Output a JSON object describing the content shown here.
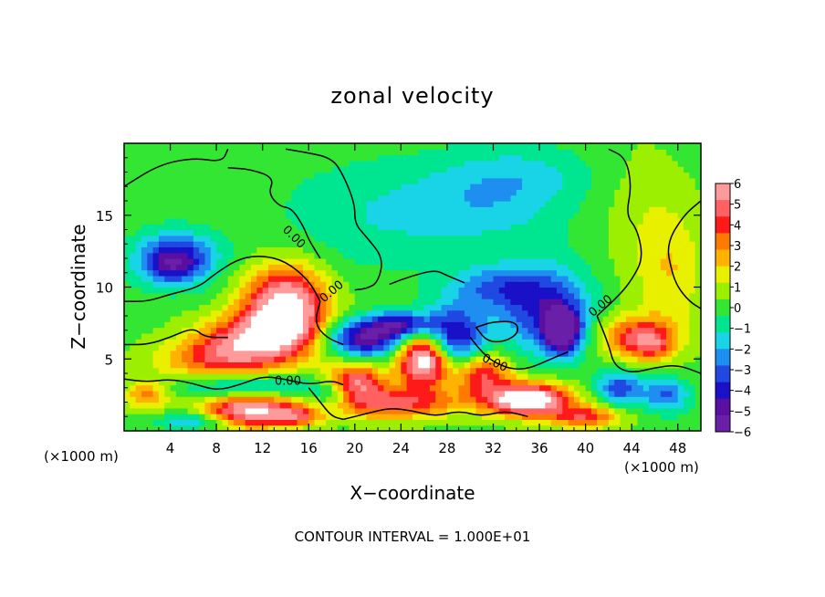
{
  "chart_data": {
    "type": "heatmap",
    "title": "zonal velocity",
    "xlabel": "X−coordinate",
    "ylabel": "Z−coordinate",
    "x_unit_label": "(×1000 m)",
    "y_unit_label": "(×1000 m)",
    "xlim": [
      0,
      50
    ],
    "ylim": [
      0,
      20
    ],
    "x_ticks": [
      4,
      8,
      12,
      16,
      20,
      24,
      28,
      32,
      36,
      40,
      44,
      48
    ],
    "y_ticks": [
      5,
      10,
      15
    ],
    "colorbar": {
      "min": -6,
      "max": 6,
      "labels": [
        "6",
        "5",
        "4",
        "3",
        "2",
        "1",
        "0",
        "−1",
        "−2",
        "−3",
        "−4",
        "−5",
        "−6"
      ],
      "colors": [
        "#ff9a9a",
        "#ff6060",
        "#ff1a1a",
        "#ff7a00",
        "#ffb300",
        "#e8f000",
        "#9cef00",
        "#33e633",
        "#00e690",
        "#19d4e6",
        "#1e8ef0",
        "#1f49e0",
        "#1a10c8",
        "#5a0fa0",
        "#6a1fa8"
      ]
    },
    "contour_label": "0.00",
    "annotation": "CONTOUR INTERVAL = 1.000E+01",
    "field_blobs": [
      {
        "x": 25,
        "z": 10,
        "rx": 40,
        "rz": 20,
        "v": 0.2
      },
      {
        "x": 22,
        "z": 15,
        "rx": 9,
        "rz": 4,
        "v": -1.3
      },
      {
        "x": 32,
        "z": 16,
        "rx": 7,
        "rz": 3,
        "v": -1.6
      },
      {
        "x": 35,
        "z": 18,
        "rx": 6,
        "rz": 2,
        "v": -1.0
      },
      {
        "x": 45,
        "z": 15,
        "rx": 4,
        "rz": 5,
        "v": 0.8
      },
      {
        "x": 4.5,
        "z": 12,
        "rx": 3.5,
        "rz": 1.8,
        "v": -4.5
      },
      {
        "x": 4,
        "z": 11.5,
        "rx": 2,
        "rz": 1,
        "v": -1.5
      },
      {
        "x": 14,
        "z": 8.5,
        "rx": 3.5,
        "rz": 2.8,
        "v": 7.5
      },
      {
        "x": 11,
        "z": 6.5,
        "rx": 4.5,
        "rz": 1.6,
        "v": 4.5
      },
      {
        "x": 8,
        "z": 5,
        "rx": 5,
        "rz": 1.4,
        "v": 3.5
      },
      {
        "x": 2,
        "z": 2.5,
        "rx": 2,
        "rz": 1,
        "v": 3.0
      },
      {
        "x": 11,
        "z": 1.5,
        "rx": 4,
        "rz": 1.2,
        "v": 6.5
      },
      {
        "x": 11,
        "z": 3,
        "rx": 6,
        "rz": 0.9,
        "v": -3.0
      },
      {
        "x": 20,
        "z": 3.5,
        "rx": 2.5,
        "rz": 1.2,
        "v": 5.0
      },
      {
        "x": 23,
        "z": 2,
        "rx": 6,
        "rz": 1.1,
        "v": 4.5
      },
      {
        "x": 26,
        "z": 5,
        "rx": 2.2,
        "rz": 1.8,
        "v": 8.0
      },
      {
        "x": 21,
        "z": 6.5,
        "rx": 3.5,
        "rz": 1.3,
        "v": -5.5
      },
      {
        "x": 24,
        "z": 7.5,
        "rx": 2.5,
        "rz": 0.8,
        "v": -4.0
      },
      {
        "x": 28.5,
        "z": 6.5,
        "rx": 2.8,
        "rz": 2.2,
        "v": -5.0
      },
      {
        "x": 31,
        "z": 4,
        "rx": 2.5,
        "rz": 1.5,
        "v": 4.5
      },
      {
        "x": 35,
        "z": 2.2,
        "rx": 3.5,
        "rz": 1.1,
        "v": 8.0
      },
      {
        "x": 36.5,
        "z": 8.5,
        "rx": 4,
        "rz": 3,
        "v": -4.0
      },
      {
        "x": 38,
        "z": 7,
        "rx": 1.5,
        "rz": 1.5,
        "v": -6.5
      },
      {
        "x": 32,
        "z": 10,
        "rx": 4,
        "rz": 1.5,
        "v": -2.5
      },
      {
        "x": 44.5,
        "z": 6.5,
        "rx": 3.2,
        "rz": 1.5,
        "v": 4.5
      },
      {
        "x": 46,
        "z": 6,
        "rx": 1.5,
        "rz": 1,
        "v": 1.8
      },
      {
        "x": 43,
        "z": 3,
        "rx": 2,
        "rz": 1.2,
        "v": -3.5
      },
      {
        "x": 47,
        "z": 2.5,
        "rx": 2,
        "rz": 1.2,
        "v": -3.0
      },
      {
        "x": 40,
        "z": 1,
        "rx": 3,
        "rz": 0.8,
        "v": 4.0
      },
      {
        "x": 47.5,
        "z": 11,
        "rx": 3,
        "rz": 4,
        "v": 1.6
      },
      {
        "x": 18,
        "z": 2.5,
        "rx": 2,
        "rz": 1,
        "v": -2.5
      },
      {
        "x": 6,
        "z": 0.7,
        "rx": 3,
        "rz": 0.6,
        "v": -2.5
      },
      {
        "x": 15,
        "z": 1,
        "rx": 2,
        "rz": 0.6,
        "v": 3.0
      }
    ],
    "contour_lines": [
      [
        [
          0,
          17
        ],
        [
          3,
          18.5
        ],
        [
          6,
          19
        ],
        [
          8.5,
          18.7
        ],
        [
          9,
          19.6
        ]
      ],
      [
        [
          9,
          18.3
        ],
        [
          11,
          18.2
        ],
        [
          13,
          17.6
        ],
        [
          12.5,
          16.5
        ],
        [
          13.5,
          15.6
        ],
        [
          14.5,
          15.5
        ],
        [
          15.5,
          14.3
        ],
        [
          16,
          13.3
        ],
        [
          17,
          12
        ]
      ],
      [
        [
          14,
          19.6
        ],
        [
          15.5,
          19.4
        ],
        [
          18,
          19
        ],
        [
          19,
          17.8
        ],
        [
          20,
          15.8
        ],
        [
          20,
          14.4
        ],
        [
          21,
          13.5
        ],
        [
          22.5,
          12
        ],
        [
          22,
          10.3
        ],
        [
          21,
          9.9
        ],
        [
          20,
          9.8
        ]
      ],
      [
        [
          0,
          9
        ],
        [
          2,
          9
        ],
        [
          4,
          9.5
        ],
        [
          6.5,
          10
        ],
        [
          8,
          11
        ],
        [
          10,
          12
        ],
        [
          12,
          12.2
        ],
        [
          14,
          11.8
        ],
        [
          16,
          10.5
        ],
        [
          17,
          9
        ]
      ],
      [
        [
          17,
          9
        ],
        [
          16.5,
          7.5
        ],
        [
          17.5,
          6.5
        ],
        [
          19,
          6
        ]
      ],
      [
        [
          0,
          6
        ],
        [
          2,
          6
        ],
        [
          4,
          6.5
        ],
        [
          6,
          7.2
        ],
        [
          7,
          6.5
        ],
        [
          9,
          6.5
        ]
      ],
      [
        [
          0,
          3.6
        ],
        [
          2,
          3.4
        ],
        [
          4,
          3.6
        ],
        [
          6,
          3.3
        ],
        [
          8,
          2.8
        ],
        [
          10,
          3.2
        ],
        [
          12,
          3.8
        ],
        [
          14,
          3.6
        ],
        [
          16,
          3.2
        ],
        [
          18,
          3.5
        ],
        [
          19,
          3.2
        ]
      ],
      [
        [
          19,
          0.8
        ],
        [
          21,
          1.2
        ],
        [
          23,
          1.6
        ],
        [
          25,
          1.4
        ],
        [
          27,
          1
        ],
        [
          29,
          1.4
        ],
        [
          31,
          1
        ],
        [
          33,
          1.4
        ],
        [
          35,
          1
        ]
      ],
      [
        [
          23,
          10.2
        ],
        [
          25,
          10.8
        ],
        [
          27,
          11.2
        ],
        [
          28,
          10.8
        ],
        [
          29.5,
          10.3
        ]
      ],
      [
        [
          30,
          6.5
        ],
        [
          31,
          5.5
        ],
        [
          32,
          4.8
        ],
        [
          33.5,
          4.3
        ],
        [
          35,
          4.3
        ],
        [
          37,
          5
        ],
        [
          38.5,
          5.5
        ]
      ],
      [
        [
          30.5,
          7.2
        ],
        [
          32,
          7.6
        ],
        [
          34,
          7.6
        ],
        [
          34.2,
          6.8
        ],
        [
          33,
          6.2
        ],
        [
          31.5,
          6.2
        ],
        [
          30.5,
          7.2
        ]
      ],
      [
        [
          42,
          19.6
        ],
        [
          43.5,
          19
        ],
        [
          44,
          17
        ],
        [
          43.5,
          15
        ],
        [
          44.5,
          14
        ],
        [
          45,
          12
        ],
        [
          44,
          10.5
        ],
        [
          43,
          9.5
        ],
        [
          41,
          8
        ]
      ],
      [
        [
          50,
          16
        ],
        [
          48.5,
          15
        ],
        [
          47,
          13
        ],
        [
          47.5,
          11
        ],
        [
          48,
          10
        ],
        [
          49,
          9
        ],
        [
          50,
          8.5
        ]
      ],
      [
        [
          41,
          8
        ],
        [
          42,
          6
        ],
        [
          42.5,
          4.5
        ],
        [
          44,
          4
        ],
        [
          46,
          4.4
        ],
        [
          48,
          4.6
        ],
        [
          50,
          4
        ]
      ],
      [
        [
          16,
          3
        ],
        [
          17,
          2
        ],
        [
          18,
          1
        ],
        [
          19,
          0.8
        ]
      ]
    ],
    "contour_labels": [
      {
        "x": 14.5,
        "z": 13.3,
        "angle": 45
      },
      {
        "x": 18.2,
        "z": 9.5,
        "angle": -40
      },
      {
        "x": 14.2,
        "z": 3.2,
        "angle": 0
      },
      {
        "x": 32,
        "z": 4.5,
        "angle": 25
      },
      {
        "x": 41.5,
        "z": 8.5,
        "angle": -40
      }
    ]
  }
}
